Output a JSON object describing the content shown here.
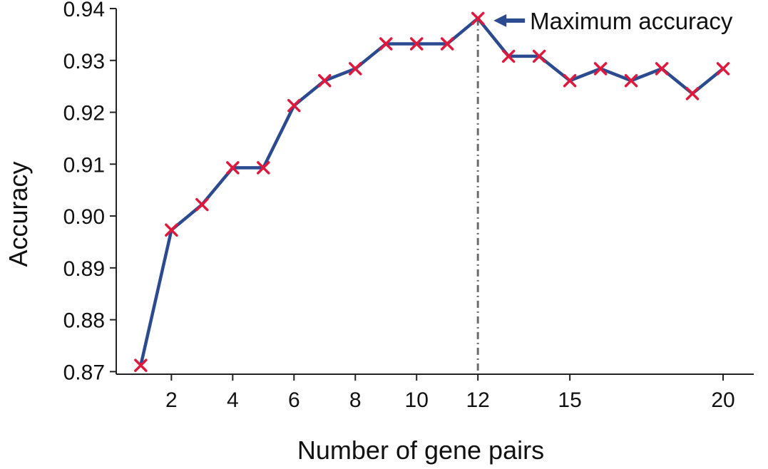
{
  "chart_data": {
    "type": "line",
    "title": "",
    "xlabel": "Number of gene pairs",
    "ylabel": "Accuracy",
    "x": [
      1,
      2,
      3,
      4,
      5,
      6,
      7,
      8,
      9,
      10,
      11,
      12,
      13,
      14,
      15,
      16,
      17,
      18,
      19,
      20
    ],
    "series": [
      {
        "values": [
          0.8712,
          0.8973,
          0.9022,
          0.9093,
          0.9093,
          0.9213,
          0.9261,
          0.9284,
          0.9332,
          0.9332,
          0.9332,
          0.9381,
          0.9308,
          0.9308,
          0.9261,
          0.9284,
          0.9261,
          0.9284,
          0.9236,
          0.9284
        ]
      }
    ],
    "xlim": [
      0.2,
      21
    ],
    "ylim": [
      0.8695,
      0.94
    ],
    "xticks": [
      2,
      4,
      6,
      8,
      10,
      12,
      15,
      20
    ],
    "yticks": [
      0.87,
      0.88,
      0.89,
      0.9,
      0.91,
      0.92,
      0.93,
      0.94
    ],
    "ytick_labels": [
      "0.87",
      "0.88",
      "0.89",
      "0.90",
      "0.91",
      "0.92",
      "0.93",
      "0.94"
    ],
    "grid": false,
    "line_color": "#2b4a8f",
    "marker_color": "#e0183c",
    "marker": "x",
    "vline": {
      "x": 12,
      "style": "dash-dot",
      "color": "#6b6b6b"
    },
    "annotation": {
      "text": "Maximum accuracy",
      "x": 12,
      "y": 0.9381
    }
  }
}
